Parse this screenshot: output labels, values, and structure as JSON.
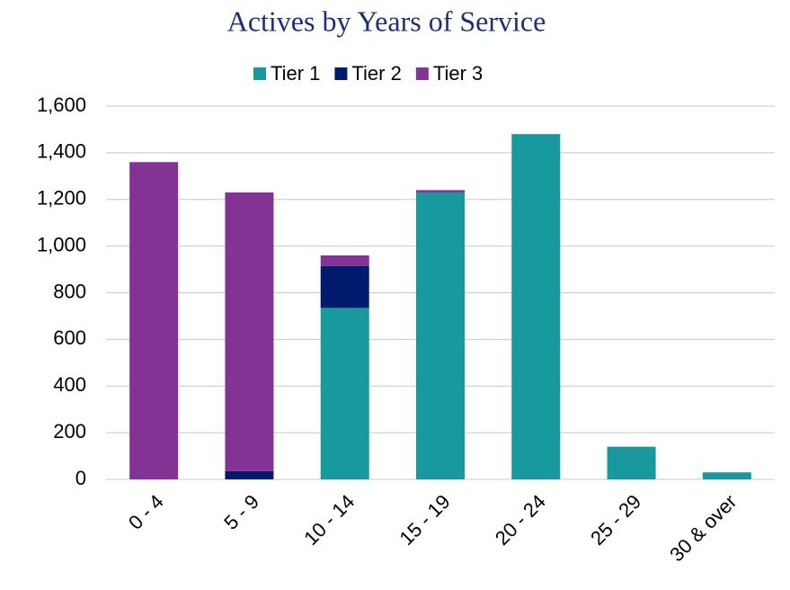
{
  "chart_data": {
    "type": "stacked_bar",
    "title": "Actives by Years of Service",
    "categories": [
      "0 - 4",
      "5 - 9",
      "10 - 14",
      "15 - 19",
      "20 - 24",
      "25 - 29",
      "30 & over"
    ],
    "series": [
      {
        "name": "Tier 1",
        "color": "#17999e",
        "values": [
          0,
          0,
          735,
          1230,
          1480,
          140,
          30
        ]
      },
      {
        "name": "Tier 2",
        "color": "#001b6e",
        "values": [
          0,
          35,
          180,
          0,
          0,
          0,
          0
        ]
      },
      {
        "name": "Tier 3",
        "color": "#833393",
        "values": [
          1360,
          1195,
          45,
          10,
          0,
          0,
          0
        ]
      }
    ],
    "ylim": [
      0,
      1600
    ],
    "yticks": [
      0,
      200,
      400,
      600,
      800,
      {
        "value": 1000,
        "label": "1,000"
      },
      {
        "value": 1200,
        "label": "1,200"
      },
      {
        "value": 1400,
        "label": "1,400"
      },
      {
        "value": 1600,
        "label": "1,600"
      }
    ],
    "grid": true,
    "legend": "top"
  }
}
